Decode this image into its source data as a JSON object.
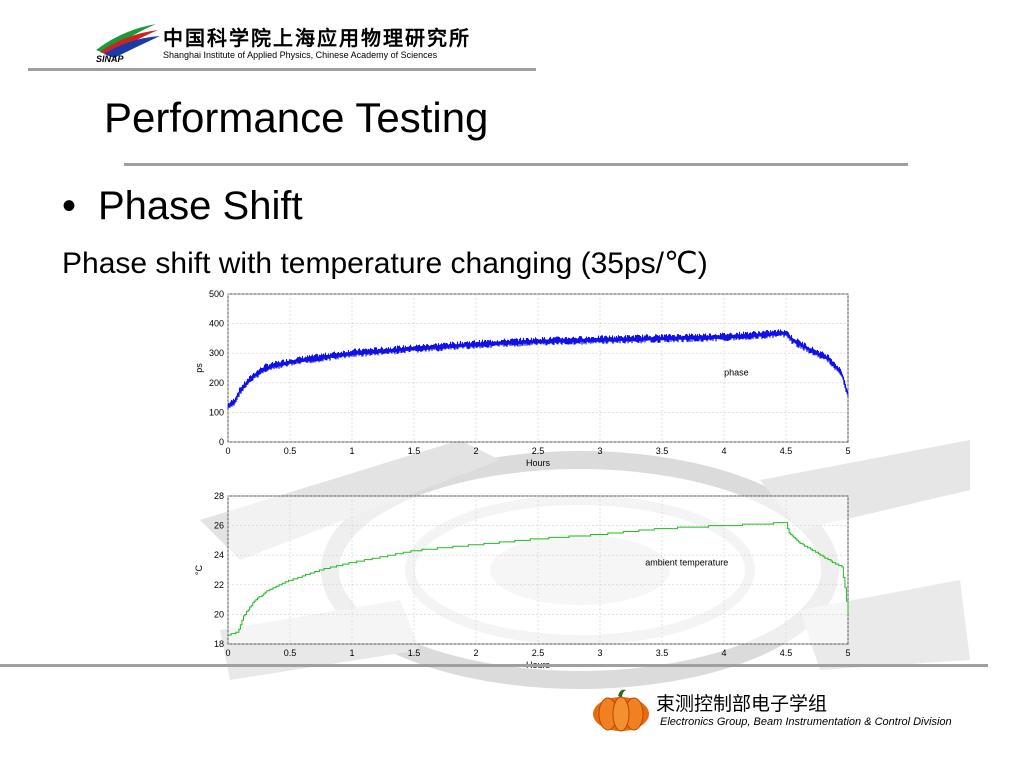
{
  "header": {
    "org_cn": "中国科学院上海应用物理研究所",
    "org_en": "Shanghai Institute of Applied Physics, Chinese Academy of Sciences",
    "logo_text": "SINAP"
  },
  "slide": {
    "title": "Performance Testing",
    "bullet": "Phase Shift",
    "subtitle": "Phase shift with temperature changing (35ps/℃)"
  },
  "footer": {
    "group_cn": "束测控制部电子学组",
    "group_en": "Electronics Group, Beam Instrumentation & Control Division"
  },
  "colors": {
    "phase": "#1010e8",
    "temperature": "#22bb22",
    "rule": "#a0a0a0"
  },
  "chart_data": [
    {
      "type": "line",
      "xlabel": "Hours",
      "ylabel": "ps",
      "annotation": "phase",
      "xlim": [
        0,
        5
      ],
      "ylim": [
        0,
        500
      ],
      "xticks": [
        "0",
        "0.5",
        "1",
        "1.5",
        "2",
        "2.5",
        "3",
        "3.5",
        "4",
        "4.5",
        "5"
      ],
      "yticks": [
        "0",
        "100",
        "200",
        "300",
        "400",
        "500"
      ],
      "grid": true,
      "noise_band": 15,
      "series": [
        {
          "x": [
            0,
            0.05,
            0.1,
            0.2,
            0.3,
            0.5,
            0.75,
            1,
            1.5,
            2,
            2.5,
            3,
            3.5,
            4,
            4.3,
            4.5,
            4.55,
            4.7,
            4.85,
            4.95,
            5
          ],
          "values": [
            120,
            135,
            175,
            220,
            250,
            270,
            285,
            300,
            315,
            330,
            340,
            345,
            350,
            355,
            362,
            368,
            345,
            310,
            280,
            230,
            160
          ]
        }
      ]
    },
    {
      "type": "line",
      "xlabel": "Hours",
      "ylabel": "°C",
      "annotation": "ambient temperature",
      "xlim": [
        0,
        5
      ],
      "ylim": [
        18,
        28
      ],
      "xticks": [
        "0",
        "0.5",
        "1",
        "1.5",
        "2",
        "2.5",
        "3",
        "3.5",
        "4",
        "4.5",
        "5"
      ],
      "yticks": [
        "18",
        "20",
        "22",
        "24",
        "26",
        "28"
      ],
      "grid": true,
      "series": [
        {
          "x": [
            0,
            0.08,
            0.12,
            0.2,
            0.3,
            0.5,
            0.75,
            1,
            1.25,
            1.5,
            2,
            2.5,
            3,
            3.5,
            4,
            4.3,
            4.5,
            4.52,
            4.6,
            4.7,
            4.8,
            4.9,
            4.95,
            4.98,
            5
          ],
          "values": [
            18.6,
            18.8,
            19.8,
            20.8,
            21.5,
            22.3,
            23.0,
            23.5,
            23.9,
            24.3,
            24.7,
            25.1,
            25.4,
            25.8,
            26.0,
            26.1,
            26.2,
            25.5,
            24.9,
            24.4,
            23.9,
            23.4,
            23.2,
            21.5,
            20.0
          ]
        }
      ]
    }
  ]
}
